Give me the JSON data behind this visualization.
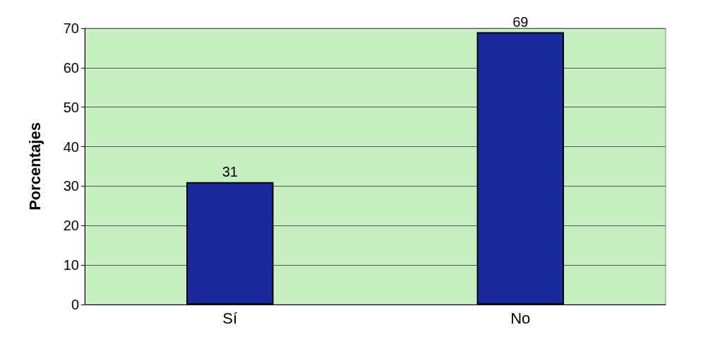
{
  "chart_data": {
    "type": "bar",
    "ylabel": "Porcentajes",
    "categories": [
      "Sí",
      "No"
    ],
    "values": [
      31,
      69
    ],
    "color": "#1a2a9c",
    "ylim": [
      0,
      70
    ],
    "yticks": [
      0,
      10,
      20,
      30,
      40,
      50,
      60,
      70
    ],
    "grid": "y",
    "data_labels": true
  }
}
